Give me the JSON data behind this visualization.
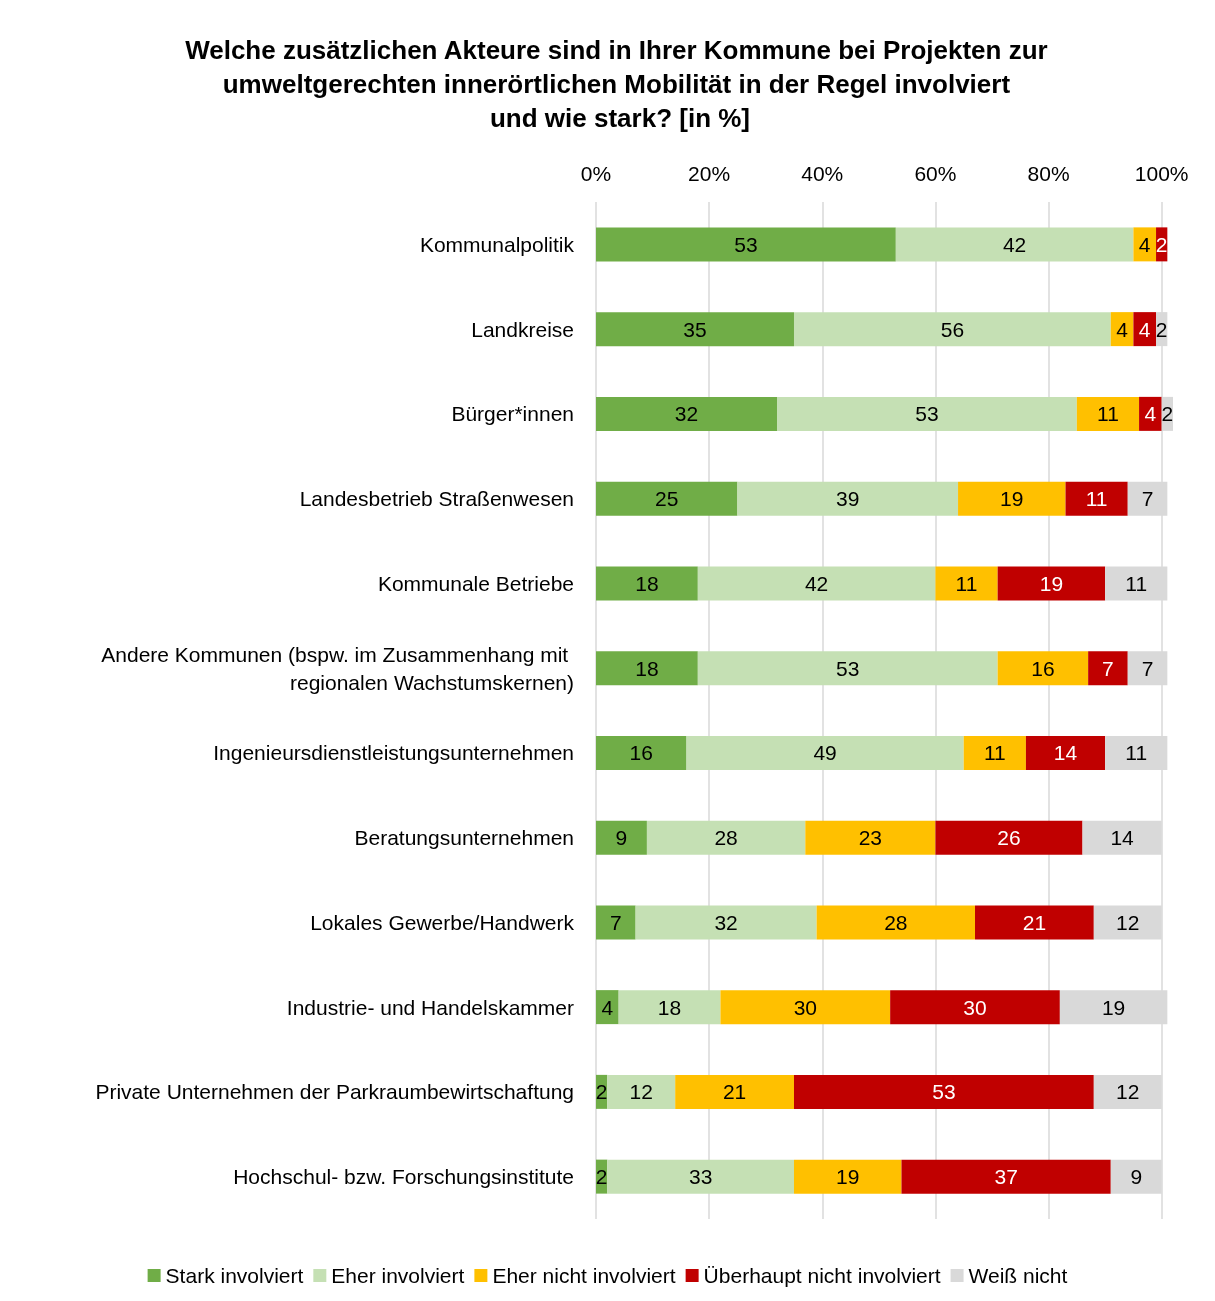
{
  "chart_data": {
    "type": "bar",
    "orientation": "horizontal",
    "stacked": true,
    "title": "Welche zusätzlichen Akteure sind in Ihrer Kommune bei Projekten zur umweltgerechten innerörtlichen Mobilität in der Regel involviert und wie stark? [in %]",
    "categories": [
      "Kommunalpolitik",
      "Landkreise",
      "Bürger*innen",
      "Landesbetrieb Straßenwesen",
      "Kommunale Betriebe",
      "Andere Kommunen (bspw. im Zusammenhang mit regionalen Wachstumskernen)",
      "Ingenieursdienstleistungsunternehmen",
      "Beratungsunternehmen",
      "Lokales Gewerbe/Handwerk",
      "Industrie- und Handelskammer",
      "Private Unternehmen der Parkraumbewirtschaftung",
      "Hochschul- bzw. Forschungsinstitute"
    ],
    "series": [
      {
        "name": "Stark involviert",
        "color": "#70ad47",
        "values": [
          53,
          35,
          32,
          25,
          18,
          18,
          16,
          9,
          7,
          4,
          2,
          2
        ]
      },
      {
        "name": "Eher involviert",
        "color": "#c5e0b4",
        "values": [
          42,
          56,
          53,
          39,
          42,
          53,
          49,
          28,
          32,
          18,
          12,
          33
        ]
      },
      {
        "name": "Eher nicht involviert",
        "color": "#ffc000",
        "values": [
          4,
          4,
          11,
          19,
          11,
          16,
          11,
          23,
          28,
          30,
          21,
          19
        ]
      },
      {
        "name": "Überhaupt nicht involviert",
        "color": "#c00000",
        "values": [
          2,
          4,
          4,
          11,
          19,
          7,
          14,
          26,
          21,
          30,
          53,
          37
        ]
      },
      {
        "name": "Weiß nicht",
        "color": "#d9d9d9",
        "values": [
          null,
          2,
          2,
          7,
          11,
          7,
          11,
          14,
          12,
          19,
          12,
          9
        ]
      }
    ],
    "xlim": [
      0,
      102
    ],
    "xticks": [
      {
        "value": 0,
        "label": "0%"
      },
      {
        "value": 20,
        "label": "20%"
      },
      {
        "value": 40,
        "label": "40%"
      },
      {
        "value": 60,
        "label": "60%"
      },
      {
        "value": 80,
        "label": "80%"
      },
      {
        "value": 100,
        "label": "100%"
      }
    ],
    "grid": "x",
    "legend": "bottom",
    "data_labels": true
  }
}
